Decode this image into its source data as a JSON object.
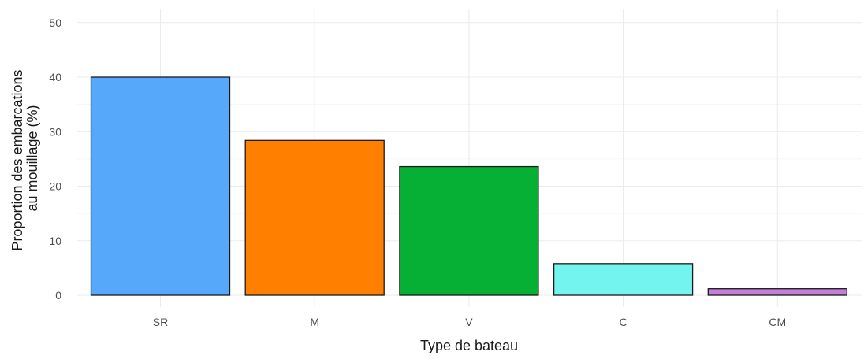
{
  "chart_data": {
    "type": "bar",
    "xlabel": "Type de bateau",
    "ylabel_lines": [
      "Proportion des embarcations",
      "au mouillage (%)"
    ],
    "categories": [
      "SR",
      "M",
      "V",
      "C",
      "CM"
    ],
    "values": [
      40.0,
      28.4,
      23.6,
      5.8,
      1.2
    ],
    "colors": [
      "#56a9fa",
      "#ff8000",
      "#06b034",
      "#74f4ee",
      "#c37fd8"
    ],
    "ylim": [
      0,
      52
    ],
    "yticks": [
      0,
      10,
      20,
      30,
      40,
      50
    ],
    "grid": true,
    "legend": "none"
  }
}
